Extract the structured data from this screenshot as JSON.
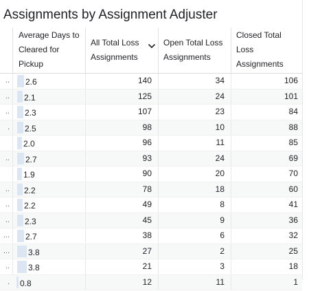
{
  "title": "Assignments by Assignment Adjuster",
  "columns": {
    "avg_days": [
      "Average Days to",
      "Cleared for",
      "Pickup"
    ],
    "all_total": [
      "All Total Loss",
      "Assignments"
    ],
    "open_total": [
      "Open Total Loss",
      "Assignments"
    ],
    "closed_total": [
      "Closed Total",
      "Loss",
      "Assignments"
    ],
    "sort_icon": "chevron-down-icon"
  },
  "rows": [
    {
      "lead": "..",
      "avg": "2.6",
      "avg_level": 0.68,
      "all": "140",
      "open": "34",
      "closed": "106"
    },
    {
      "lead": "..",
      "avg": "2.1",
      "avg_level": 0.55,
      "all": "125",
      "open": "24",
      "closed": "101"
    },
    {
      "lead": "..",
      "avg": "2.3",
      "avg_level": 0.61,
      "all": "107",
      "open": "23",
      "closed": "84"
    },
    {
      "lead": ".",
      "avg": "2.5",
      "avg_level": 0.66,
      "all": "98",
      "open": "10",
      "closed": "88"
    },
    {
      "lead": "",
      "avg": "2.0",
      "avg_level": 0.53,
      "all": "96",
      "open": "11",
      "closed": "85"
    },
    {
      "lead": "..",
      "avg": "2.7",
      "avg_level": 0.71,
      "all": "93",
      "open": "24",
      "closed": "69"
    },
    {
      "lead": "",
      "avg": "1.9",
      "avg_level": 0.5,
      "all": "90",
      "open": "20",
      "closed": "70"
    },
    {
      "lead": "..",
      "avg": "2.2",
      "avg_level": 0.58,
      "all": "78",
      "open": "18",
      "closed": "60"
    },
    {
      "lead": "..",
      "avg": "2.2",
      "avg_level": 0.58,
      "all": "49",
      "open": "8",
      "closed": "41"
    },
    {
      "lead": "..",
      "avg": "2.3",
      "avg_level": 0.61,
      "all": "45",
      "open": "9",
      "closed": "36"
    },
    {
      "lead": "...",
      "avg": "2.7",
      "avg_level": 0.71,
      "all": "38",
      "open": "6",
      "closed": "32"
    },
    {
      "lead": "...",
      "avg": "3.8",
      "avg_level": 1.0,
      "all": "27",
      "open": "2",
      "closed": "25"
    },
    {
      "lead": "..",
      "avg": "3.8",
      "avg_level": 1.0,
      "all": "21",
      "open": "3",
      "closed": "18"
    },
    {
      "lead": ".",
      "avg": "0.8",
      "avg_level": 0.21,
      "all": "12",
      "open": "11",
      "closed": "1"
    }
  ]
}
